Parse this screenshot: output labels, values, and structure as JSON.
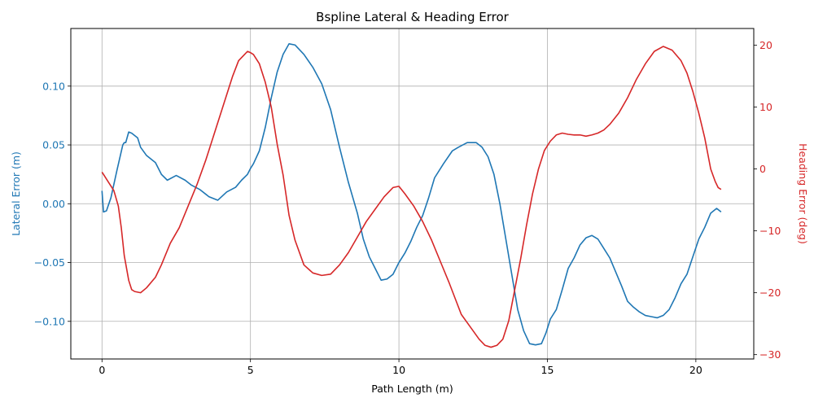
{
  "chart_data": {
    "type": "line",
    "title": "Bspline Lateral & Heading Error",
    "xlabel": "Path Length (m)",
    "ylabel_left": "Lateral Error (m)",
    "ylabel_right": "Heading Error (deg)",
    "xlim": [
      -1.05,
      21.95
    ],
    "ylim_left": [
      -0.132,
      0.149
    ],
    "ylim_right": [
      -30.7,
      22.7
    ],
    "xticks": [
      0,
      5,
      10,
      15,
      20
    ],
    "xtick_labels": [
      "0",
      "5",
      "10",
      "15",
      "20"
    ],
    "yticks_left": [
      -0.1,
      -0.05,
      0.0,
      0.05,
      0.1
    ],
    "ytick_labels_left": [
      "−0.10",
      "−0.05",
      "0.00",
      "0.05",
      "0.10"
    ],
    "yticks_right": [
      -30,
      -20,
      -10,
      0,
      10,
      20
    ],
    "ytick_labels_right": [
      "−30",
      "−20",
      "−10",
      "0",
      "10",
      "20"
    ],
    "grid": true,
    "colors": {
      "lateral": "#1f77b4",
      "heading": "#d62728"
    },
    "series": [
      {
        "axis": "left",
        "x": [
          0.0,
          0.05,
          0.15,
          0.3,
          0.5,
          0.7,
          0.75,
          0.8,
          0.9,
          1.0,
          1.2,
          1.3,
          1.5,
          1.8,
          2.0,
          2.2,
          2.5,
          2.8,
          3.0,
          3.3,
          3.6,
          3.9,
          4.2,
          4.5,
          4.7,
          4.9,
          5.0,
          5.1,
          5.3,
          5.5,
          5.7,
          5.9,
          6.1,
          6.3,
          6.5,
          6.8,
          7.1,
          7.4,
          7.7,
          8.0,
          8.3,
          8.6,
          8.8,
          9.0,
          9.2,
          9.4,
          9.6,
          9.8,
          10.0,
          10.2,
          10.4,
          10.6,
          10.8,
          11.0,
          11.2,
          11.5,
          11.8,
          12.0,
          12.3,
          12.6,
          12.8,
          13.0,
          13.2,
          13.4,
          13.6,
          13.8,
          14.0,
          14.2,
          14.4,
          14.6,
          14.8,
          14.95,
          15.1,
          15.3,
          15.5,
          15.7,
          15.9,
          16.1,
          16.3,
          16.5,
          16.7,
          16.9,
          17.1,
          17.3,
          17.5,
          17.7,
          17.9,
          18.1,
          18.3,
          18.5,
          18.7,
          18.9,
          19.1,
          19.3,
          19.5,
          19.7,
          19.9,
          20.1,
          20.3,
          20.5,
          20.7,
          20.85
        ],
        "values": [
          0.011,
          -0.007,
          -0.006,
          0.005,
          0.028,
          0.05,
          0.052,
          0.052,
          0.061,
          0.06,
          0.056,
          0.048,
          0.041,
          0.035,
          0.025,
          0.02,
          0.024,
          0.02,
          0.016,
          0.012,
          0.006,
          0.003,
          0.01,
          0.014,
          0.02,
          0.025,
          0.03,
          0.034,
          0.045,
          0.065,
          0.09,
          0.112,
          0.127,
          0.136,
          0.135,
          0.127,
          0.116,
          0.102,
          0.08,
          0.048,
          0.018,
          -0.008,
          -0.03,
          -0.045,
          -0.055,
          -0.065,
          -0.064,
          -0.06,
          -0.05,
          -0.042,
          -0.032,
          -0.02,
          -0.01,
          0.005,
          0.022,
          0.034,
          0.045,
          0.048,
          0.052,
          0.052,
          0.048,
          0.04,
          0.025,
          0.0,
          -0.03,
          -0.06,
          -0.09,
          -0.108,
          -0.119,
          -0.12,
          -0.119,
          -0.11,
          -0.098,
          -0.09,
          -0.073,
          -0.055,
          -0.046,
          -0.035,
          -0.029,
          -0.027,
          -0.03,
          -0.038,
          -0.046,
          -0.058,
          -0.07,
          -0.083,
          -0.088,
          -0.092,
          -0.095,
          -0.096,
          -0.097,
          -0.095,
          -0.09,
          -0.08,
          -0.068,
          -0.06,
          -0.045,
          -0.03,
          -0.02,
          -0.008,
          -0.004,
          -0.007
        ],
        "name": ""
      },
      {
        "axis": "right",
        "x": [
          0.0,
          0.2,
          0.4,
          0.55,
          0.65,
          0.75,
          0.9,
          1.0,
          1.1,
          1.3,
          1.5,
          1.8,
          2.0,
          2.3,
          2.6,
          2.9,
          3.2,
          3.5,
          3.8,
          4.1,
          4.4,
          4.6,
          4.8,
          4.9,
          5.0,
          5.1,
          5.3,
          5.5,
          5.7,
          5.9,
          6.1,
          6.3,
          6.5,
          6.8,
          7.1,
          7.4,
          7.7,
          8.0,
          8.3,
          8.6,
          8.9,
          9.2,
          9.5,
          9.8,
          10.0,
          10.2,
          10.5,
          10.8,
          11.1,
          11.4,
          11.7,
          11.9,
          12.1,
          12.4,
          12.7,
          12.9,
          13.1,
          13.3,
          13.5,
          13.7,
          13.9,
          14.1,
          14.3,
          14.5,
          14.7,
          14.9,
          15.1,
          15.3,
          15.5,
          15.7,
          15.9,
          16.1,
          16.3,
          16.5,
          16.7,
          16.9,
          17.1,
          17.4,
          17.7,
          18.0,
          18.3,
          18.6,
          18.9,
          19.2,
          19.5,
          19.7,
          19.9,
          20.1,
          20.3,
          20.5,
          20.65,
          20.75,
          20.85
        ],
        "values": [
          -0.5,
          -2.0,
          -3.5,
          -6.0,
          -9.5,
          -14.0,
          -18.0,
          -19.5,
          -19.8,
          -20.0,
          -19.2,
          -17.5,
          -15.5,
          -12.0,
          -9.5,
          -6.0,
          -2.5,
          1.5,
          6.0,
          10.5,
          15.0,
          17.5,
          18.5,
          19.0,
          18.8,
          18.5,
          17.0,
          14.0,
          10.0,
          4.0,
          -1.0,
          -7.5,
          -11.5,
          -15.5,
          -16.8,
          -17.2,
          -17.0,
          -15.5,
          -13.5,
          -11.0,
          -8.5,
          -6.5,
          -4.5,
          -3.0,
          -2.8,
          -4.0,
          -6.0,
          -8.5,
          -11.5,
          -15.0,
          -18.5,
          -21.0,
          -23.5,
          -25.5,
          -27.5,
          -28.5,
          -28.8,
          -28.5,
          -27.5,
          -24.5,
          -19.5,
          -14.5,
          -9.0,
          -4.0,
          0.0,
          3.0,
          4.5,
          5.5,
          5.8,
          5.6,
          5.5,
          5.5,
          5.3,
          5.5,
          5.8,
          6.3,
          7.2,
          9.0,
          11.5,
          14.5,
          17.0,
          19.0,
          19.8,
          19.2,
          17.5,
          15.5,
          12.5,
          9.0,
          5.0,
          0.0,
          -2.0,
          -3.0,
          -3.3
        ],
        "name": ""
      }
    ]
  }
}
